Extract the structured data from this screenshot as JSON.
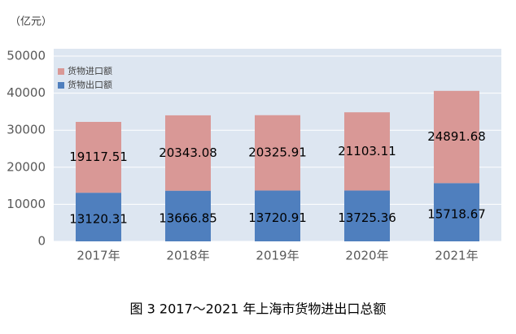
{
  "chart_data": {
    "type": "stacked_bar",
    "title": "图 3 2017～2021 年上海市货物进出口总额",
    "y_label": "（亿元）",
    "categories": [
      "2017年",
      "2018年",
      "2019年",
      "2020年",
      "2021年"
    ],
    "series": [
      {
        "name": "货物出口额",
        "color": "#4f7fbe",
        "values": [
          13120.31,
          13666.85,
          13720.91,
          13725.36,
          15718.67
        ]
      },
      {
        "name": "货物进口额",
        "color": "#d99896",
        "values": [
          19117.51,
          20343.08,
          20325.91,
          21103.11,
          24891.68
        ]
      }
    ],
    "ylim": [
      0,
      50000
    ],
    "yticks": [
      0,
      10000,
      20000,
      30000,
      40000,
      50000
    ],
    "grid": true,
    "legend": "top-left"
  }
}
